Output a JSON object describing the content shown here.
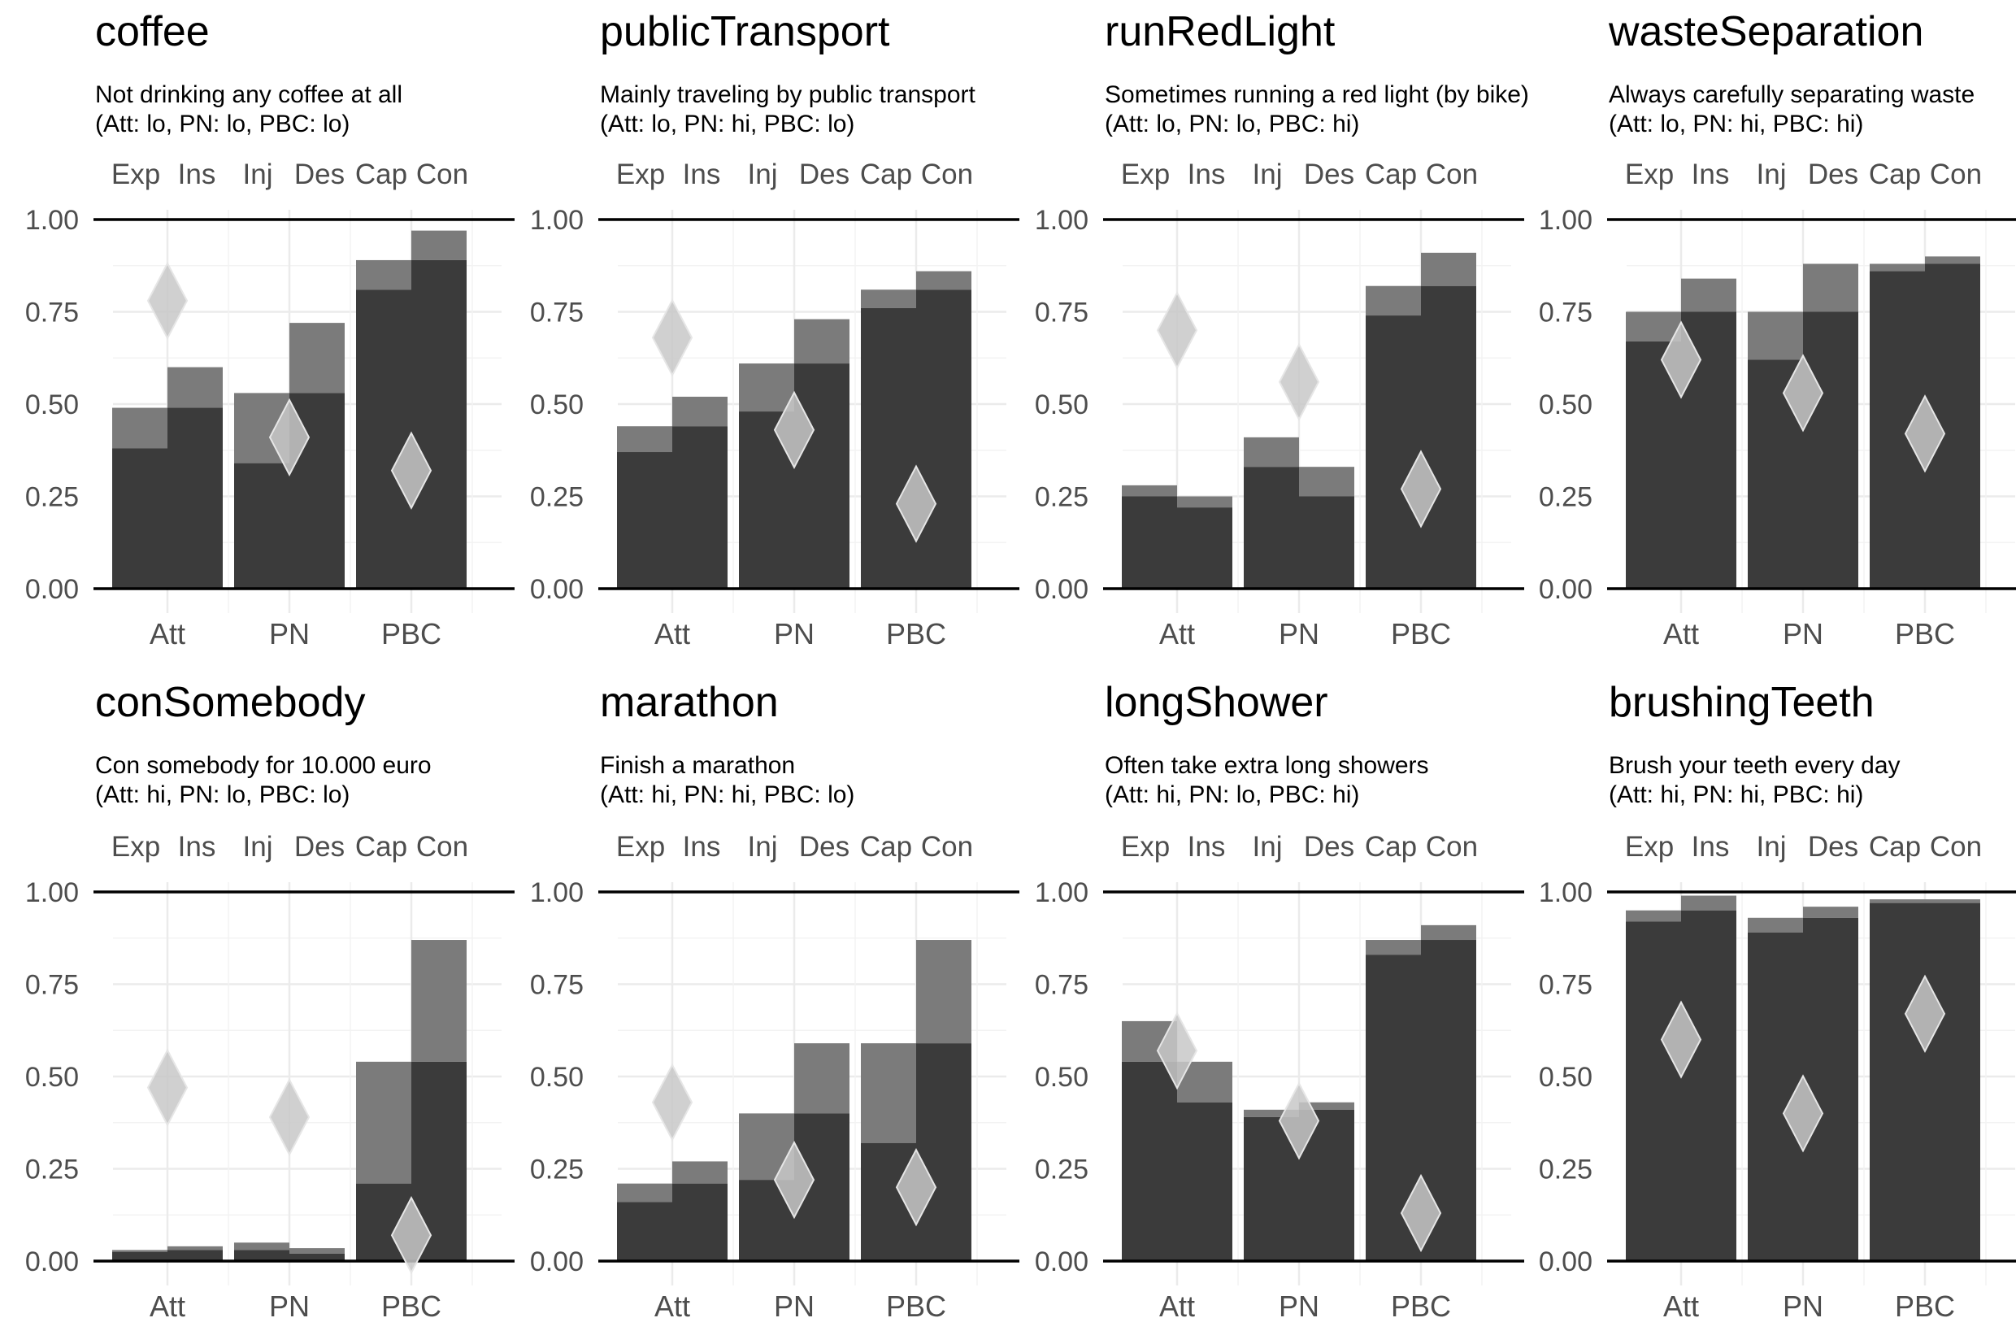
{
  "chart_data": {
    "type": "bar",
    "description": "8 panels; per panel 3 groups (Att, PN, PBC), each with 2 stacked bars; bar layers: dark lower value and lighter upper value; diamond marker per group",
    "ylim": [
      0,
      1
    ],
    "yticks": [
      "0.00",
      "0.25",
      "0.50",
      "0.75",
      "1.00"
    ],
    "groups": [
      "Att",
      "PN",
      "PBC"
    ],
    "top_labels": [
      "Exp",
      "Ins",
      "Inj",
      "Des",
      "Cap",
      "Con"
    ],
    "colors": {
      "dark": "#3b3b3b",
      "light": "#7b7b7b",
      "diamond": "#c8c8c8"
    },
    "panels": [
      {
        "title": "coffee",
        "subtitle1": "Not drinking any coffee at all",
        "subtitle2": "(Att: lo, PN: lo, PBC: lo)",
        "bars": [
          [
            0.38,
            0.49
          ],
          [
            0.49,
            0.6
          ],
          [
            0.34,
            0.53
          ],
          [
            0.53,
            0.72
          ],
          [
            0.81,
            0.89
          ],
          [
            0.89,
            0.97
          ]
        ],
        "diamonds": [
          0.78,
          0.41,
          0.32
        ]
      },
      {
        "title": "publicTransport",
        "subtitle1": "Mainly traveling by public transport",
        "subtitle2": "(Att: lo, PN: hi, PBC: lo)",
        "bars": [
          [
            0.37,
            0.44
          ],
          [
            0.44,
            0.52
          ],
          [
            0.48,
            0.61
          ],
          [
            0.61,
            0.73
          ],
          [
            0.76,
            0.81
          ],
          [
            0.81,
            0.86
          ]
        ],
        "diamonds": [
          0.68,
          0.43,
          0.23
        ]
      },
      {
        "title": "runRedLight",
        "subtitle1": "Sometimes running a red light (by bike)",
        "subtitle2": "(Att: lo, PN: lo, PBC: hi)",
        "bars": [
          [
            0.25,
            0.28
          ],
          [
            0.22,
            0.25
          ],
          [
            0.33,
            0.41
          ],
          [
            0.25,
            0.33
          ],
          [
            0.74,
            0.82
          ],
          [
            0.82,
            0.91
          ]
        ],
        "diamonds": [
          0.7,
          0.56,
          0.27
        ]
      },
      {
        "title": "wasteSeparation",
        "subtitle1": "Always carefully separating waste",
        "subtitle2": "(Att: lo, PN: hi, PBC: hi)",
        "bars": [
          [
            0.67,
            0.75
          ],
          [
            0.75,
            0.84
          ],
          [
            0.62,
            0.75
          ],
          [
            0.75,
            0.88
          ],
          [
            0.86,
            0.88
          ],
          [
            0.88,
            0.9
          ]
        ],
        "diamonds": [
          0.62,
          0.53,
          0.42
        ]
      },
      {
        "title": "conSomebody",
        "subtitle1": "Con somebody for 10.000 euro",
        "subtitle2": "(Att: hi, PN: lo, PBC: lo)",
        "bars": [
          [
            0.025,
            0.03
          ],
          [
            0.03,
            0.04
          ],
          [
            0.03,
            0.05
          ],
          [
            0.02,
            0.035
          ],
          [
            0.21,
            0.54
          ],
          [
            0.54,
            0.87
          ]
        ],
        "diamonds": [
          0.47,
          0.39,
          0.07
        ]
      },
      {
        "title": "marathon",
        "subtitle1": "Finish a marathon",
        "subtitle2": "(Att: hi, PN: hi, PBC: lo)",
        "bars": [
          [
            0.16,
            0.21
          ],
          [
            0.21,
            0.27
          ],
          [
            0.22,
            0.4
          ],
          [
            0.4,
            0.59
          ],
          [
            0.32,
            0.59
          ],
          [
            0.59,
            0.87
          ]
        ],
        "diamonds": [
          0.43,
          0.22,
          0.2
        ]
      },
      {
        "title": "longShower",
        "subtitle1": "Often take extra long showers",
        "subtitle2": "(Att: hi, PN: lo, PBC: hi)",
        "bars": [
          [
            0.54,
            0.65
          ],
          [
            0.43,
            0.54
          ],
          [
            0.39,
            0.41
          ],
          [
            0.41,
            0.43
          ],
          [
            0.83,
            0.87
          ],
          [
            0.87,
            0.91
          ]
        ],
        "diamonds": [
          0.57,
          0.38,
          0.13
        ]
      },
      {
        "title": "brushingTeeth",
        "subtitle1": "Brush your teeth every day",
        "subtitle2": "(Att: hi, PN: hi, PBC: hi)",
        "bars": [
          [
            0.92,
            0.95
          ],
          [
            0.95,
            0.99
          ],
          [
            0.89,
            0.93
          ],
          [
            0.93,
            0.96
          ],
          [
            0.97,
            0.98
          ],
          [
            0.97,
            0.98
          ]
        ],
        "diamonds": [
          0.6,
          0.4,
          0.67
        ]
      }
    ]
  }
}
